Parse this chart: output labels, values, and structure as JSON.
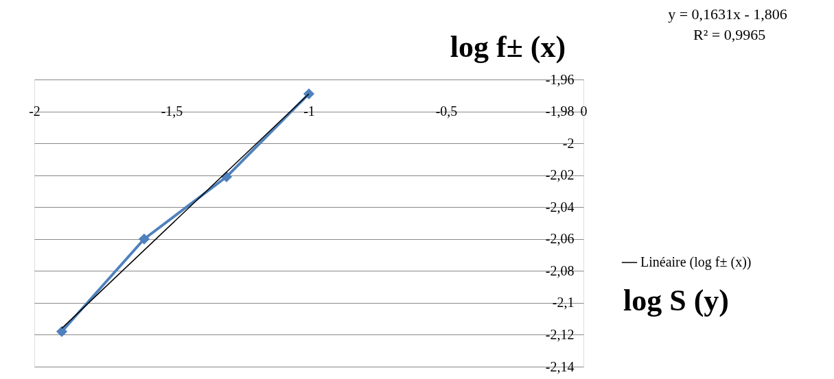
{
  "chart_data": {
    "type": "line",
    "xlabel": "log f±   (x)",
    "ylabel": "log S  (y)",
    "series": [
      {
        "color": "#4f81bd",
        "x": [
          -1.9,
          -1.6,
          -1.3,
          -1.0
        ],
        "values": [
          -2.118,
          -2.06,
          -2.021,
          -1.969
        ],
        "marker": "diamond"
      },
      {
        "name": "Linéaire (log f±   (x))",
        "color": "#000000",
        "x": [
          -1.9,
          -1.0
        ],
        "values": [
          -2.116,
          -1.969
        ],
        "marker": "none"
      }
    ],
    "xlim": [
      -2,
      0
    ],
    "xticks": [
      {
        "value": -2,
        "label": "-2"
      },
      {
        "value": -1.5,
        "label": "-1,5"
      },
      {
        "value": -1,
        "label": "-1"
      },
      {
        "value": -0.5,
        "label": "-0,5"
      },
      {
        "value": 0,
        "label": "0"
      }
    ],
    "ylim": [
      -2.14,
      -1.96
    ],
    "yticks": [
      {
        "value": -1.96,
        "label": "-1,96"
      },
      {
        "value": -1.98,
        "label": "-1,98"
      },
      {
        "value": -2,
        "label": "-2"
      },
      {
        "value": -2.02,
        "label": "-2,02"
      },
      {
        "value": -2.04,
        "label": "-2,04"
      },
      {
        "value": -2.06,
        "label": "-2,06"
      },
      {
        "value": -2.08,
        "label": "-2,08"
      },
      {
        "value": -2.1,
        "label": "-2,1"
      },
      {
        "value": -2.12,
        "label": "-2,12"
      },
      {
        "value": -2.14,
        "label": "-2,14"
      }
    ],
    "grid": "y",
    "legend": "right",
    "annotations": [
      "y = 0,1631x - 1,806",
      "R² = 0,9965"
    ]
  }
}
